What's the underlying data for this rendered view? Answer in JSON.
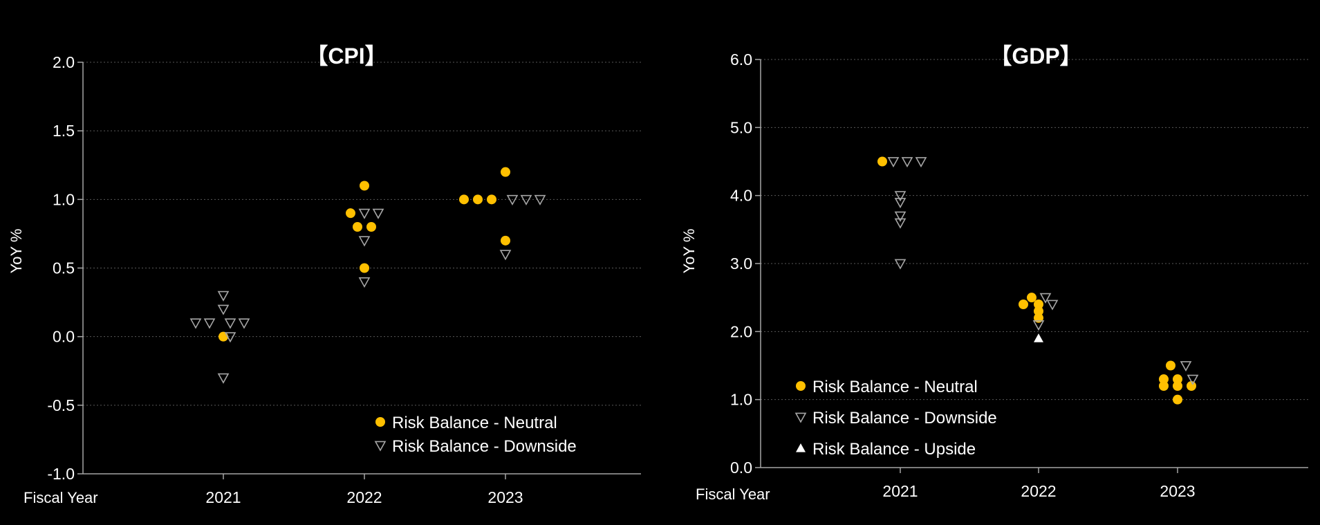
{
  "colors": {
    "background": "#000000",
    "neutral": "#FFC000",
    "downside": "#A6A6A6",
    "upside": "#FFFFFF",
    "grid": "#595959",
    "axis": "#A6A6A6"
  },
  "chart_data": [
    {
      "type": "scatter",
      "title": "【CPI】",
      "ylabel": "YoY %",
      "xlabel": "Fiscal Year",
      "categories": [
        "2021",
        "2022",
        "2023"
      ],
      "ylim": [
        -1.0,
        2.0
      ],
      "yticks": [
        "-1.0",
        "-0.5",
        "0.0",
        "0.5",
        "1.0",
        "1.5",
        "2.0"
      ],
      "grid": true,
      "legend_position": "bottom-right",
      "series": [
        {
          "name": "Risk Balance - Neutral",
          "marker": "circle",
          "points": [
            {
              "x": "2021",
              "y": 0.0,
              "slot": 0
            },
            {
              "x": "2022",
              "y": 1.1,
              "slot": 0
            },
            {
              "x": "2022",
              "y": 0.9,
              "slot": -1
            },
            {
              "x": "2022",
              "y": 0.8,
              "slot": -0.5
            },
            {
              "x": "2022",
              "y": 0.8,
              "slot": 0.5
            },
            {
              "x": "2022",
              "y": 0.5,
              "slot": 0
            },
            {
              "x": "2023",
              "y": 1.2,
              "slot": 0
            },
            {
              "x": "2023",
              "y": 1.0,
              "slot": -3
            },
            {
              "x": "2023",
              "y": 1.0,
              "slot": -2
            },
            {
              "x": "2023",
              "y": 1.0,
              "slot": -1
            },
            {
              "x": "2023",
              "y": 0.7,
              "slot": 0
            }
          ]
        },
        {
          "name": "Risk Balance - Downside",
          "marker": "triangle-down",
          "points": [
            {
              "x": "2021",
              "y": 0.3,
              "slot": 0
            },
            {
              "x": "2021",
              "y": 0.2,
              "slot": 0
            },
            {
              "x": "2021",
              "y": 0.1,
              "slot": -2
            },
            {
              "x": "2021",
              "y": 0.1,
              "slot": -1
            },
            {
              "x": "2021",
              "y": 0.1,
              "slot": 0.5
            },
            {
              "x": "2021",
              "y": 0.1,
              "slot": 1.5
            },
            {
              "x": "2021",
              "y": 0.0,
              "slot": 0.5
            },
            {
              "x": "2021",
              "y": -0.3,
              "slot": 0
            },
            {
              "x": "2022",
              "y": 0.9,
              "slot": 0
            },
            {
              "x": "2022",
              "y": 0.9,
              "slot": 1
            },
            {
              "x": "2022",
              "y": 0.7,
              "slot": 0
            },
            {
              "x": "2022",
              "y": 0.4,
              "slot": 0
            },
            {
              "x": "2023",
              "y": 1.0,
              "slot": 0.5
            },
            {
              "x": "2023",
              "y": 1.0,
              "slot": 1.5
            },
            {
              "x": "2023",
              "y": 1.0,
              "slot": 2.5
            },
            {
              "x": "2023",
              "y": 0.6,
              "slot": 0
            }
          ]
        }
      ]
    },
    {
      "type": "scatter",
      "title": "【GDP】",
      "ylabel": "YoY %",
      "xlabel": "Fiscal Year",
      "categories": [
        "2021",
        "2022",
        "2023"
      ],
      "ylim": [
        0.0,
        6.0
      ],
      "yticks": [
        "0.0",
        "1.0",
        "2.0",
        "3.0",
        "4.0",
        "5.0",
        "6.0"
      ],
      "grid": true,
      "legend_position": "bottom-left",
      "series": [
        {
          "name": "Risk Balance - Neutral",
          "marker": "circle",
          "points": [
            {
              "x": "2021",
              "y": 4.5,
              "slot": -1.3
            },
            {
              "x": "2022",
              "y": 2.5,
              "slot": -0.5
            },
            {
              "x": "2022",
              "y": 2.4,
              "slot": -1.1
            },
            {
              "x": "2022",
              "y": 2.4,
              "slot": 0
            },
            {
              "x": "2022",
              "y": 2.3,
              "slot": 0
            },
            {
              "x": "2022",
              "y": 2.2,
              "slot": 0
            },
            {
              "x": "2023",
              "y": 1.5,
              "slot": -0.5
            },
            {
              "x": "2023",
              "y": 1.3,
              "slot": -1
            },
            {
              "x": "2023",
              "y": 1.3,
              "slot": 0
            },
            {
              "x": "2023",
              "y": 1.2,
              "slot": -1
            },
            {
              "x": "2023",
              "y": 1.2,
              "slot": 0
            },
            {
              "x": "2023",
              "y": 1.2,
              "slot": 1
            },
            {
              "x": "2023",
              "y": 1.0,
              "slot": 0
            }
          ]
        },
        {
          "name": "Risk Balance - Downside",
          "marker": "triangle-down",
          "points": [
            {
              "x": "2021",
              "y": 4.5,
              "slot": -0.5
            },
            {
              "x": "2021",
              "y": 4.5,
              "slot": 0.5
            },
            {
              "x": "2021",
              "y": 4.5,
              "slot": 1.5
            },
            {
              "x": "2021",
              "y": 4.0,
              "slot": 0
            },
            {
              "x": "2021",
              "y": 3.9,
              "slot": 0
            },
            {
              "x": "2021",
              "y": 3.7,
              "slot": 0
            },
            {
              "x": "2021",
              "y": 3.6,
              "slot": 0
            },
            {
              "x": "2021",
              "y": 3.0,
              "slot": 0
            },
            {
              "x": "2022",
              "y": 2.5,
              "slot": 0.5
            },
            {
              "x": "2022",
              "y": 2.4,
              "slot": 1
            },
            {
              "x": "2022",
              "y": 2.1,
              "slot": 0
            },
            {
              "x": "2023",
              "y": 1.5,
              "slot": 0.6
            },
            {
              "x": "2023",
              "y": 1.3,
              "slot": 1.1
            }
          ]
        },
        {
          "name": "Risk Balance - Upside",
          "marker": "triangle-up",
          "points": [
            {
              "x": "2022",
              "y": 1.9,
              "slot": 0
            }
          ]
        }
      ]
    }
  ]
}
